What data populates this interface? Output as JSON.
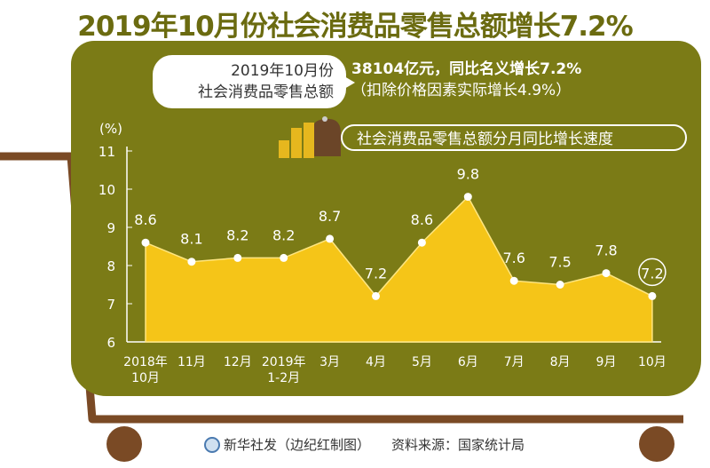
{
  "title": "2019年10月份社会消费品零售总额增长7.2%",
  "bubble": {
    "line1": "2019年10月份",
    "line2": "社会消费品零售总额"
  },
  "headline": {
    "line1": "38104亿元，同比名义增长7.2%",
    "line2": "（扣除价格因素实际增长4.9%）"
  },
  "footer": {
    "credit": "新华社发（边纪红制图）",
    "source": "资料来源：国家统计局"
  },
  "colors": {
    "panel": "#7b7b16",
    "area": "#f5c518",
    "cart": "#7a4a25",
    "title": "#6b6b10"
  },
  "chart_data": {
    "type": "area",
    "title": "社会消费品零售总额分月同比增长速度",
    "ylabel": "(%)",
    "ylim": [
      6,
      11
    ],
    "yticks": [
      6,
      7,
      8,
      9,
      10,
      11
    ],
    "categories": [
      "2018年\n10月",
      "11月",
      "12月",
      "2019年\n1-2月",
      "3月",
      "4月",
      "5月",
      "6月",
      "7月",
      "8月",
      "9月",
      "10月"
    ],
    "values": [
      8.6,
      8.1,
      8.2,
      8.2,
      8.7,
      7.2,
      8.6,
      9.8,
      7.6,
      7.5,
      7.8,
      7.2
    ]
  }
}
